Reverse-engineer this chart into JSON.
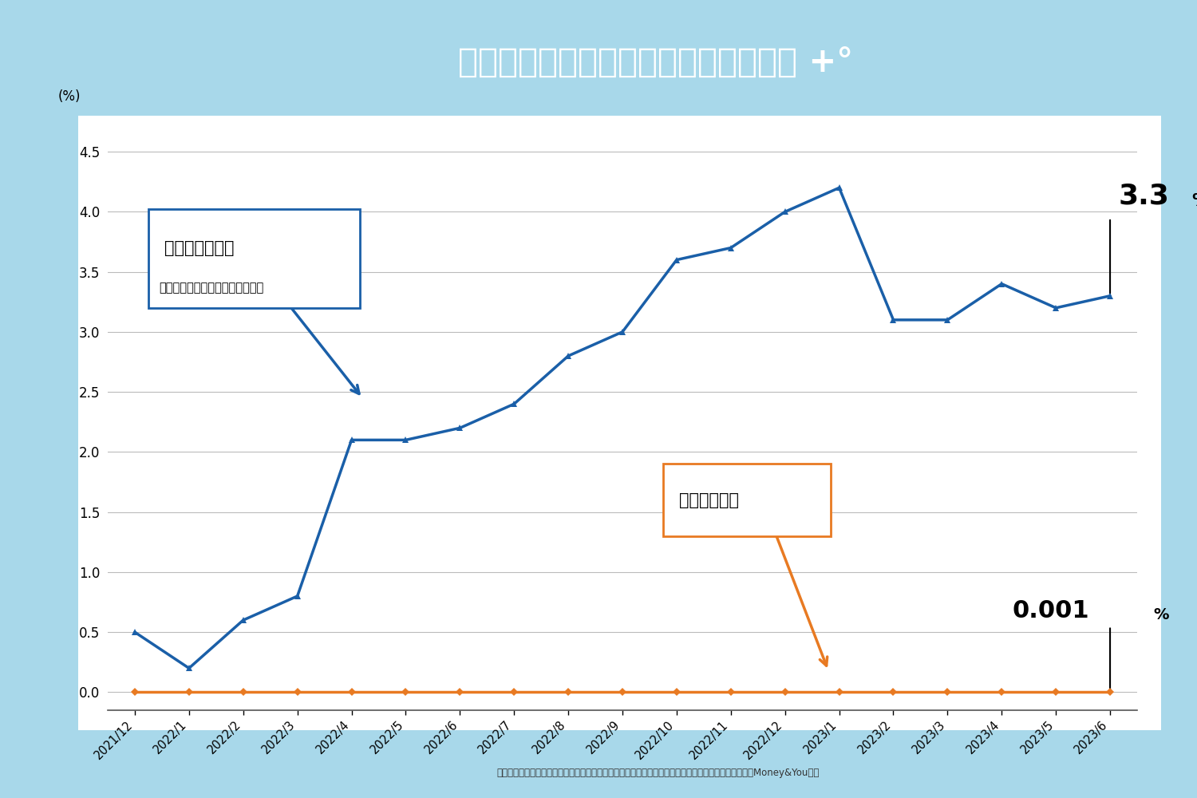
{
  "title": "消費者物価指数と普通預金金利の比較",
  "title_suffix": " +°",
  "title_bg_color": "#1fa86e",
  "outer_bg_color": "#a8d8ea",
  "inner_bg_color": "#ffffff",
  "x_labels": [
    "2021/12",
    "2022/1",
    "2022/2",
    "2022/3",
    "2022/4",
    "2022/5",
    "2022/6",
    "2022/7",
    "2022/8",
    "2022/9",
    "2022/10",
    "2022/11",
    "2022/12",
    "2023/1",
    "2023/2",
    "2023/3",
    "2023/4",
    "2023/5",
    "2023/6"
  ],
  "cpi_values": [
    0.5,
    0.2,
    0.6,
    0.8,
    2.1,
    2.1,
    2.2,
    2.4,
    2.8,
    3.0,
    3.6,
    3.7,
    4.0,
    4.2,
    3.1,
    3.1,
    3.4,
    3.2,
    3.3
  ],
  "savings_values": [
    0.001,
    0.001,
    0.001,
    0.001,
    0.001,
    0.001,
    0.001,
    0.001,
    0.001,
    0.001,
    0.001,
    0.001,
    0.001,
    0.001,
    0.001,
    0.001,
    0.001,
    0.001,
    0.001
  ],
  "cpi_color": "#1a5fa8",
  "savings_color": "#e87a22",
  "ylim": [
    -0.15,
    4.8
  ],
  "yticks": [
    0.0,
    0.5,
    1.0,
    1.5,
    2.0,
    2.5,
    3.0,
    3.5,
    4.0,
    4.5
  ],
  "footnote": "消費者物価指数は前年同月比・生鮮食品を除く総合のデータ、普通預金金利は日銀のデータより（株）Money&You作成",
  "cpi_label": "消費者物価指数",
  "cpi_sublabel": "（前年同月比、生鮮食品を除く）",
  "savings_label": "普通預金金利",
  "cpi_end_value": "3.3",
  "savings_end_value": "0.001",
  "ylabel": "(%)"
}
